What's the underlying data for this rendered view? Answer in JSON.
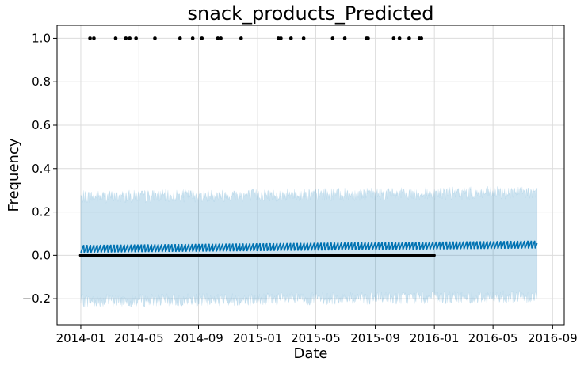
{
  "chart_data": {
    "type": "scatter",
    "title": "snack_products_Predicted",
    "xlabel": "Date",
    "ylabel": "Frequency",
    "xlim": [
      "2013-11-13",
      "2016-09-25"
    ],
    "ylim": [
      -0.32,
      1.06
    ],
    "x_ticks": [
      "2014-01",
      "2014-05",
      "2014-09",
      "2015-01",
      "2015-05",
      "2015-09",
      "2016-01",
      "2016-05",
      "2016-09"
    ],
    "y_ticks": [
      "−0.2",
      "0.0",
      "0.2",
      "0.4",
      "0.6",
      "0.8",
      "1.0"
    ],
    "y_tick_values": [
      -0.2,
      0.0,
      0.2,
      0.4,
      0.6,
      0.8,
      1.0
    ],
    "grid": true,
    "forecast": {
      "start": "2014-01-01",
      "end": "2016-07-31",
      "yhat_start": 0.03,
      "yhat_end": 0.05,
      "yhat_weekly_amplitude": 0.035,
      "upper_start": 0.27,
      "upper_end": 0.29,
      "lower_start": -0.21,
      "lower_end": -0.19,
      "band_noise": 0.03,
      "color_line": "#0072B2",
      "color_band": "#0072B2"
    },
    "actual": {
      "zero_start": "2014-01-01",
      "zero_end": "2015-12-31",
      "zero_value": 0.0,
      "one_value": 1.0,
      "one_dates": [
        "2014-01-20",
        "2014-01-28",
        "2014-03-14",
        "2014-04-04",
        "2014-04-12",
        "2014-04-25",
        "2014-06-03",
        "2014-07-25",
        "2014-08-20",
        "2014-09-08",
        "2014-10-11",
        "2014-10-17",
        "2014-11-28",
        "2015-02-13",
        "2015-02-18",
        "2015-03-11",
        "2015-04-06",
        "2015-06-05",
        "2015-06-30",
        "2015-08-14",
        "2015-08-17",
        "2015-10-09",
        "2015-10-21",
        "2015-11-10",
        "2015-12-01",
        "2015-12-05"
      ],
      "color": "#000000"
    }
  }
}
